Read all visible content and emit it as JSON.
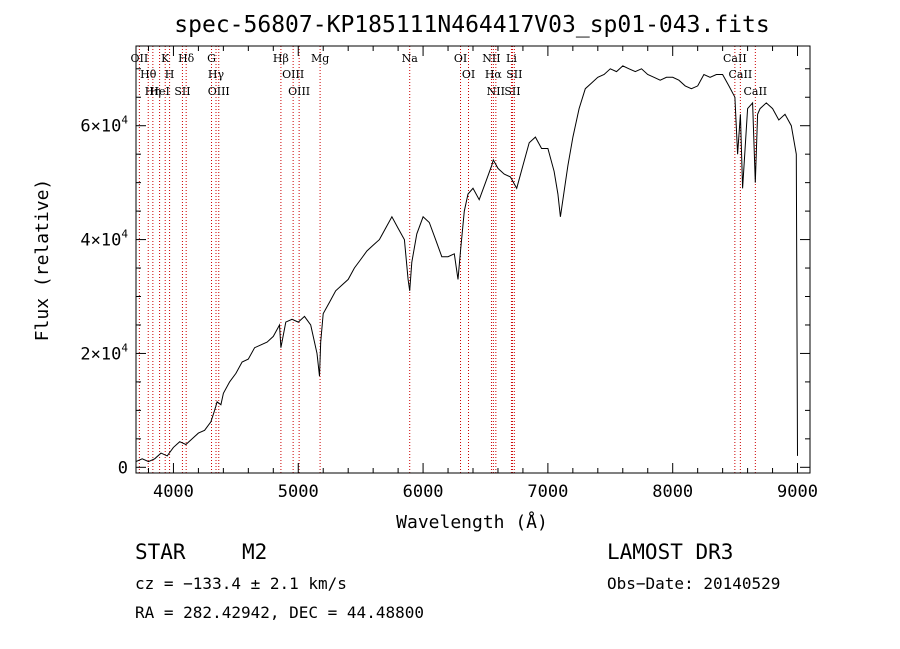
{
  "chart_data": {
    "type": "line",
    "title": "spec-56807-KP185111N464417V03_sp01-043.fits",
    "xlabel": "Wavelength (Å)",
    "ylabel": "Flux (relative)",
    "xlim": [
      3700,
      9100
    ],
    "ylim": [
      -1000,
      74000
    ],
    "x_ticks": [
      {
        "value": 4000,
        "label": "4000"
      },
      {
        "value": 5000,
        "label": "5000"
      },
      {
        "value": 6000,
        "label": "6000"
      },
      {
        "value": 7000,
        "label": "7000"
      },
      {
        "value": 8000,
        "label": "8000"
      },
      {
        "value": 9000,
        "label": "9000"
      }
    ],
    "y_ticks": [
      {
        "value": 0,
        "mantissa": "0",
        "exponent": ""
      },
      {
        "value": 20000,
        "mantissa": "2×10",
        "exponent": "4"
      },
      {
        "value": 40000,
        "mantissa": "4×10",
        "exponent": "4"
      },
      {
        "value": 60000,
        "mantissa": "6×10",
        "exponent": "4"
      }
    ],
    "series": [
      {
        "name": "flux",
        "x": [
          3700,
          3750,
          3800,
          3850,
          3900,
          3950,
          4000,
          4050,
          4100,
          4150,
          4200,
          4250,
          4300,
          4330,
          4350,
          4380,
          4400,
          4450,
          4500,
          4550,
          4600,
          4650,
          4700,
          4750,
          4800,
          4850,
          4861,
          4900,
          4950,
          5000,
          5050,
          5100,
          5150,
          5170,
          5180,
          5200,
          5250,
          5300,
          5350,
          5400,
          5450,
          5500,
          5550,
          5600,
          5650,
          5700,
          5750,
          5800,
          5850,
          5880,
          5893,
          5910,
          5950,
          6000,
          6050,
          6100,
          6150,
          6200,
          6250,
          6280,
          6300,
          6330,
          6360,
          6400,
          6450,
          6500,
          6550,
          6563,
          6600,
          6650,
          6700,
          6750,
          6800,
          6850,
          6900,
          6950,
          7000,
          7050,
          7080,
          7100,
          7120,
          7140,
          7160,
          7200,
          7250,
          7300,
          7350,
          7400,
          7450,
          7500,
          7550,
          7600,
          7650,
          7700,
          7750,
          7800,
          7850,
          7900,
          7950,
          8000,
          8050,
          8100,
          8150,
          8200,
          8250,
          8300,
          8350,
          8400,
          8450,
          8498,
          8520,
          8542,
          8560,
          8600,
          8640,
          8662,
          8680,
          8700,
          8750,
          8800,
          8850,
          8900,
          8950,
          8990,
          9000
        ],
        "y": [
          1000,
          1500,
          1000,
          1500,
          2500,
          2000,
          3500,
          4500,
          4000,
          5000,
          6000,
          6500,
          8000,
          10000,
          11500,
          11000,
          13000,
          15000,
          16500,
          18500,
          19000,
          21000,
          21500,
          22000,
          23000,
          25000,
          21000,
          25500,
          26000,
          25500,
          26500,
          25000,
          20000,
          16000,
          22000,
          27000,
          29000,
          31000,
          32000,
          33000,
          35000,
          36500,
          38000,
          39000,
          40000,
          42000,
          44000,
          42000,
          40000,
          33000,
          31000,
          36000,
          41000,
          44000,
          43000,
          40000,
          37000,
          37000,
          37500,
          33000,
          38000,
          45000,
          48000,
          49000,
          47000,
          50000,
          53000,
          54000,
          52500,
          51500,
          51000,
          49000,
          53000,
          57000,
          58000,
          56000,
          56000,
          52000,
          48000,
          44000,
          47000,
          50000,
          53000,
          58000,
          63000,
          66500,
          67500,
          68500,
          69000,
          70000,
          69500,
          70500,
          70000,
          69500,
          70000,
          69000,
          68500,
          68000,
          68500,
          68500,
          68000,
          67000,
          66500,
          67000,
          69000,
          68500,
          69000,
          69000,
          67000,
          65000,
          55000,
          62000,
          49000,
          63000,
          64000,
          50000,
          62000,
          63000,
          64000,
          63000,
          61000,
          62000,
          60000,
          55000,
          2000
        ]
      }
    ],
    "line_groups": [
      {
        "color": "#cc0000",
        "lines": [
          {
            "label": "OII",
            "wavelength": 3727
          },
          {
            "label": "Hθ",
            "wavelength": 3798
          },
          {
            "label": "Hη",
            "wavelength": 3835
          },
          {
            "label": "K",
            "wavelength": 3934
          },
          {
            "label": "H",
            "wavelength": 3969
          },
          {
            "label": "HeI",
            "wavelength": 3889
          },
          {
            "label": "Hδ",
            "wavelength": 4102
          },
          {
            "label": "SII",
            "wavelength": 4072
          },
          {
            "label": "G",
            "wavelength": 4305
          },
          {
            "label": "Hγ",
            "wavelength": 4341
          },
          {
            "label": "OIII",
            "wavelength": 4363
          },
          {
            "label": "Hβ",
            "wavelength": 4861
          },
          {
            "label": "OIII",
            "wavelength": 4959
          },
          {
            "label": "OIII",
            "wavelength": 5007
          },
          {
            "label": "Mg",
            "wavelength": 5175
          },
          {
            "label": "Na",
            "wavelength": 5893
          },
          {
            "label": "OI",
            "wavelength": 6300
          },
          {
            "label": "OI",
            "wavelength": 6364
          },
          {
            "label": "NII",
            "wavelength": 6548
          },
          {
            "label": "Hα",
            "wavelength": 6563
          },
          {
            "label": "NII",
            "wavelength": 6583
          },
          {
            "label": "Li",
            "wavelength": 6708
          },
          {
            "label": "SII",
            "wavelength": 6716
          },
          {
            "label": "SII",
            "wavelength": 6731
          },
          {
            "label": "CaII",
            "wavelength": 8498
          },
          {
            "label": "CaII",
            "wavelength": 8542
          },
          {
            "label": "CaII",
            "wavelength": 8662
          }
        ]
      }
    ]
  },
  "info": {
    "class_label": "STAR",
    "subclass": "M2",
    "survey": "LAMOST DR3",
    "cz": "cz = −133.4 ± 2.1 km/s",
    "obs_date": "Obs−Date: 20140529",
    "coords": "RA = 282.42942, DEC =  44.48800"
  }
}
